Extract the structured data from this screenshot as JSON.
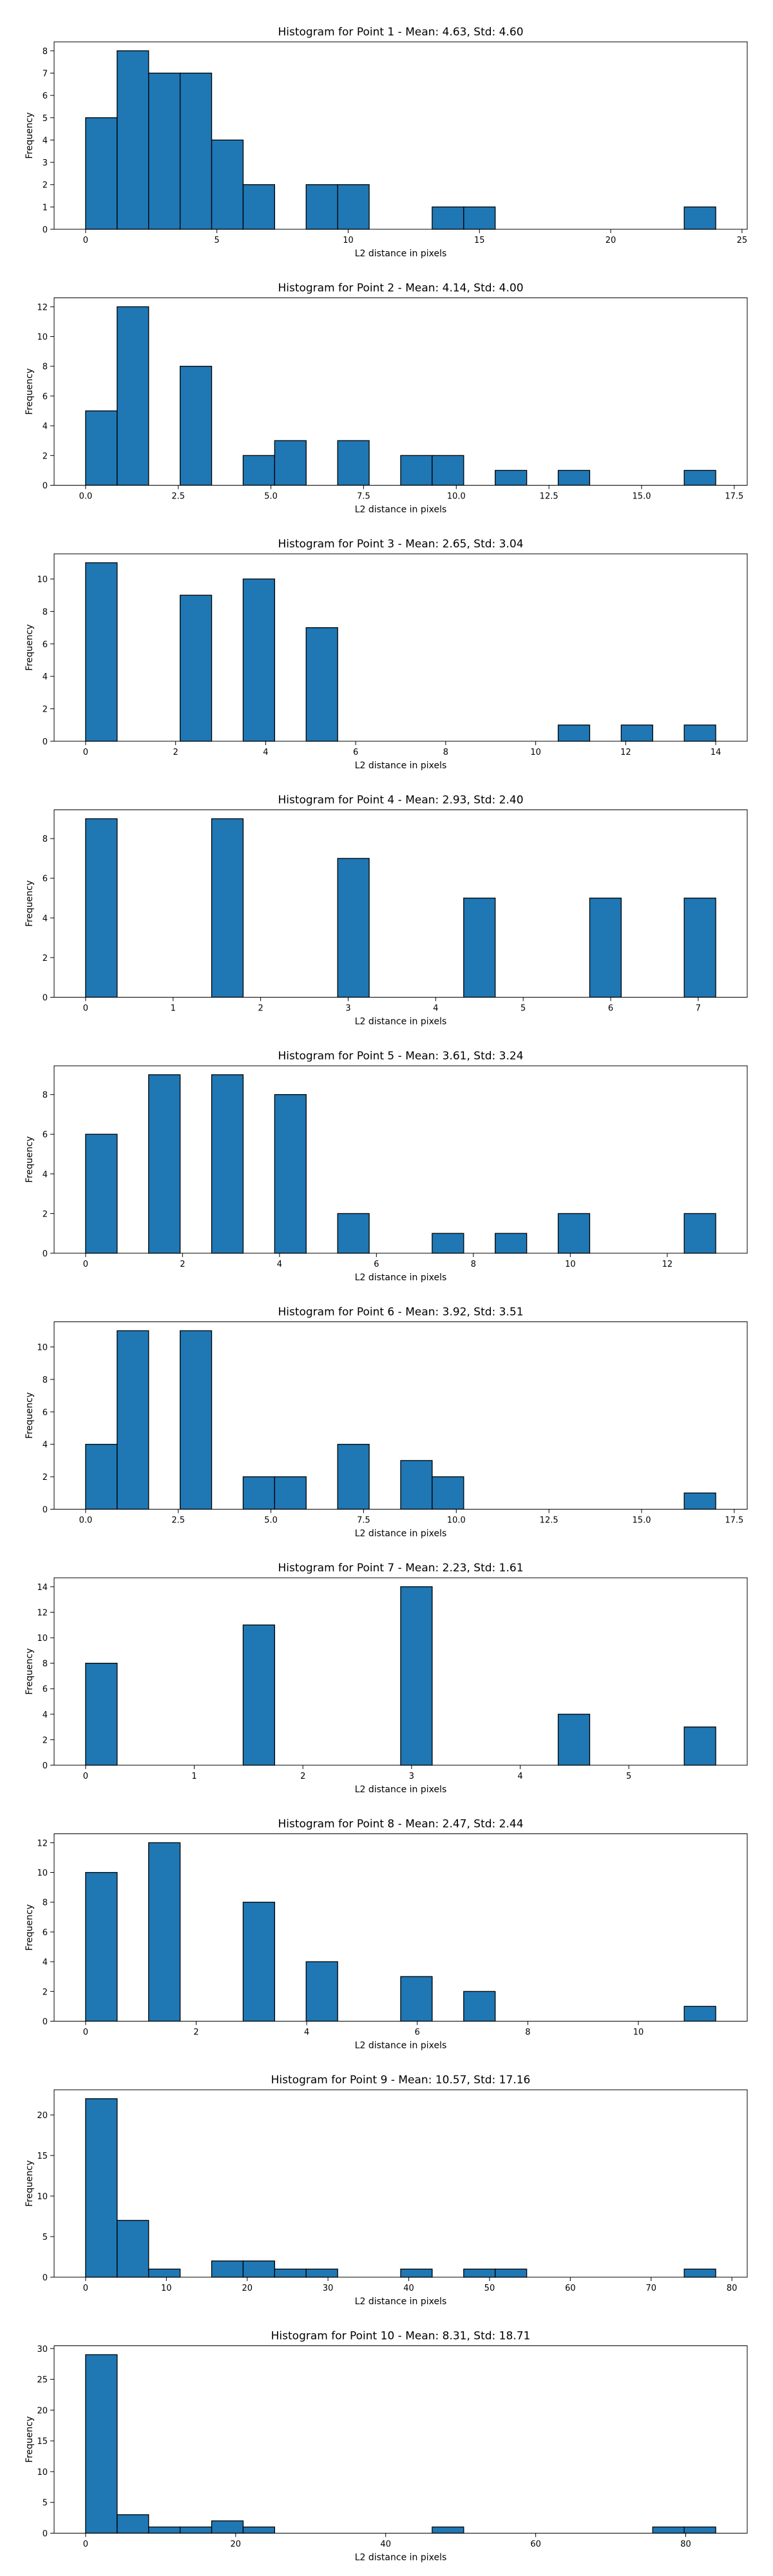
{
  "style": {
    "bar_color": "#1f77b4",
    "bar_edge": "#000000"
  },
  "chart_data": [
    {
      "type": "bar",
      "title": "Histogram for Point 1 - Mean: 4.63, Std: 4.60",
      "xlabel": "L2 distance in pixels",
      "ylabel": "Frequency",
      "xlim": [
        -1.2,
        25.2
      ],
      "ylim": [
        0,
        8.4
      ],
      "xticks": [
        0,
        5,
        10,
        15,
        20,
        25
      ],
      "yticks": [
        0,
        1,
        2,
        3,
        4,
        5,
        6,
        7,
        8
      ],
      "bin_start": 0,
      "bin_width": 1.2,
      "values": [
        5,
        8,
        7,
        7,
        4,
        2,
        0,
        2,
        2,
        0,
        0,
        1,
        1,
        0,
        0,
        0,
        0,
        0,
        0,
        1
      ]
    },
    {
      "type": "bar",
      "title": "Histogram for Point 2 - Mean: 4.14, Std: 4.00",
      "xlabel": "L2 distance in pixels",
      "ylabel": "Frequency",
      "xlim": [
        -0.85,
        17.85
      ],
      "ylim": [
        0,
        12.6
      ],
      "xticks": [
        0.0,
        2.5,
        5.0,
        7.5,
        10.0,
        12.5,
        15.0,
        17.5
      ],
      "xtick_labels": [
        "0.0",
        "2.5",
        "5.0",
        "7.5",
        "10.0",
        "12.5",
        "15.0",
        "17.5"
      ],
      "yticks": [
        0,
        2,
        4,
        6,
        8,
        10,
        12
      ],
      "bin_start": 0,
      "bin_width": 0.85,
      "values": [
        5,
        12,
        0,
        8,
        0,
        2,
        3,
        0,
        3,
        0,
        2,
        2,
        0,
        1,
        0,
        1,
        0,
        0,
        0,
        1
      ]
    },
    {
      "type": "bar",
      "title": "Histogram for Point 3 - Mean: 2.65, Std: 3.04",
      "xlabel": "L2 distance in pixels",
      "ylabel": "Frequency",
      "xlim": [
        -0.7,
        14.7
      ],
      "ylim": [
        0,
        11.55
      ],
      "xticks": [
        0,
        2,
        4,
        6,
        8,
        10,
        12,
        14
      ],
      "yticks": [
        0,
        2,
        4,
        6,
        8,
        10
      ],
      "bin_start": 0,
      "bin_width": 0.7,
      "values": [
        11,
        0,
        0,
        9,
        0,
        10,
        0,
        7,
        0,
        0,
        0,
        0,
        0,
        0,
        0,
        1,
        0,
        1,
        0,
        1
      ]
    },
    {
      "type": "bar",
      "title": "Histogram for Point 4 - Mean: 2.93, Std: 2.40",
      "xlabel": "L2 distance in pixels",
      "ylabel": "Frequency",
      "xlim": [
        -0.36,
        7.56
      ],
      "ylim": [
        0,
        9.45
      ],
      "xticks": [
        0,
        1,
        2,
        3,
        4,
        5,
        6,
        7
      ],
      "yticks": [
        0,
        2,
        4,
        6,
        8
      ],
      "bin_start": 0,
      "bin_width": 0.36,
      "values": [
        9,
        0,
        0,
        0,
        9,
        0,
        0,
        0,
        7,
        0,
        0,
        0,
        5,
        0,
        0,
        0,
        5,
        0,
        0,
        5
      ]
    },
    {
      "type": "bar",
      "title": "Histogram for Point 5 - Mean: 3.61, Std: 3.24",
      "xlabel": "L2 distance in pixels",
      "ylabel": "Frequency",
      "xlim": [
        -0.65,
        13.65
      ],
      "ylim": [
        0,
        9.45
      ],
      "xticks": [
        0,
        2,
        4,
        6,
        8,
        10,
        12
      ],
      "yticks": [
        0,
        2,
        4,
        6,
        8
      ],
      "bin_start": 0,
      "bin_width": 0.65,
      "values": [
        6,
        0,
        9,
        0,
        9,
        0,
        8,
        0,
        2,
        0,
        0,
        1,
        0,
        1,
        0,
        2,
        0,
        0,
        0,
        2
      ]
    },
    {
      "type": "bar",
      "title": "Histogram for Point 6 - Mean: 3.92, Std: 3.51",
      "xlabel": "L2 distance in pixels",
      "ylabel": "Frequency",
      "xlim": [
        -0.85,
        17.85
      ],
      "ylim": [
        0,
        11.55
      ],
      "xticks": [
        0.0,
        2.5,
        5.0,
        7.5,
        10.0,
        12.5,
        15.0,
        17.5
      ],
      "xtick_labels": [
        "0.0",
        "2.5",
        "5.0",
        "7.5",
        "10.0",
        "12.5",
        "15.0",
        "17.5"
      ],
      "yticks": [
        0,
        2,
        4,
        6,
        8,
        10
      ],
      "bin_start": 0,
      "bin_width": 0.85,
      "values": [
        4,
        11,
        0,
        11,
        0,
        2,
        2,
        0,
        4,
        0,
        3,
        2,
        0,
        0,
        0,
        0,
        0,
        0,
        0,
        1
      ]
    },
    {
      "type": "bar",
      "title": "Histogram for Point 7 - Mean: 2.23, Std: 1.61",
      "xlabel": "L2 distance in pixels",
      "ylabel": "Frequency",
      "xlim": [
        -0.29,
        6.09
      ],
      "ylim": [
        0,
        14.7
      ],
      "xticks": [
        0,
        1,
        2,
        3,
        4,
        5
      ],
      "yticks": [
        0,
        2,
        4,
        6,
        8,
        10,
        12,
        14
      ],
      "bin_start": 0,
      "bin_width": 0.29,
      "values": [
        8,
        0,
        0,
        0,
        0,
        11,
        0,
        0,
        0,
        0,
        14,
        0,
        0,
        0,
        0,
        4,
        0,
        0,
        0,
        3
      ]
    },
    {
      "type": "bar",
      "title": "Histogram for Point 8 - Mean: 2.47, Std: 2.44",
      "xlabel": "L2 distance in pixels",
      "ylabel": "Frequency",
      "xlim": [
        -0.57,
        11.97
      ],
      "ylim": [
        0,
        12.6
      ],
      "xticks": [
        0,
        2,
        4,
        6,
        8,
        10
      ],
      "yticks": [
        0,
        2,
        4,
        6,
        8,
        10,
        12
      ],
      "bin_start": 0,
      "bin_width": 0.57,
      "values": [
        10,
        0,
        12,
        0,
        0,
        8,
        0,
        4,
        0,
        0,
        3,
        0,
        2,
        0,
        0,
        0,
        0,
        0,
        0,
        1
      ]
    },
    {
      "type": "bar",
      "title": "Histogram for Point 9 - Mean: 10.57, Std: 17.16",
      "xlabel": "L2 distance in pixels",
      "ylabel": "Frequency",
      "xlim": [
        -3.9,
        81.9
      ],
      "ylim": [
        0,
        23.1
      ],
      "xticks": [
        0,
        10,
        20,
        30,
        40,
        50,
        60,
        70,
        80
      ],
      "yticks": [
        0,
        5,
        10,
        15,
        20
      ],
      "bin_start": 0,
      "bin_width": 3.9,
      "values": [
        22,
        7,
        1,
        0,
        2,
        2,
        1,
        1,
        0,
        0,
        1,
        0,
        1,
        1,
        0,
        0,
        0,
        0,
        0,
        1
      ]
    },
    {
      "type": "bar",
      "title": "Histogram for Point 10 - Mean: 8.31, Std: 18.71",
      "xlabel": "L2 distance in pixels",
      "ylabel": "Frequency",
      "xlim": [
        -4.2,
        88.2
      ],
      "ylim": [
        0,
        30.45
      ],
      "xticks": [
        0,
        20,
        40,
        60,
        80
      ],
      "yticks": [
        0,
        5,
        10,
        15,
        20,
        25,
        30
      ],
      "bin_start": 0,
      "bin_width": 4.2,
      "values": [
        29,
        3,
        1,
        1,
        2,
        1,
        0,
        0,
        0,
        0,
        0,
        1,
        0,
        0,
        0,
        0,
        0,
        0,
        1,
        1
      ]
    }
  ]
}
